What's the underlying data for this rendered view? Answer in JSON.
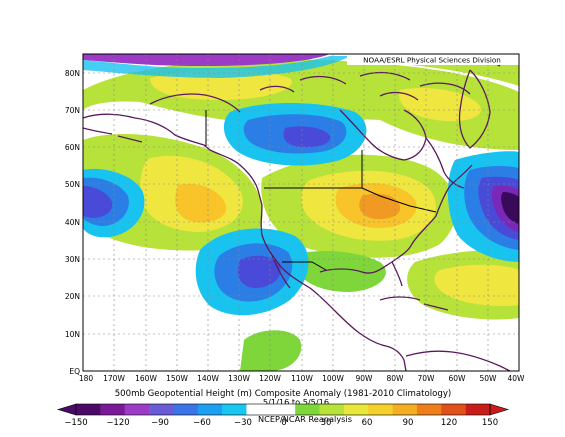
{
  "credit": "NOAA/ESRL Physical Sciences Division",
  "lat_labels": [
    "80N",
    "70N",
    "60N",
    "50N",
    "40N",
    "30N",
    "20N",
    "10N",
    "EQ"
  ],
  "lon_labels": [
    "180",
    "170W",
    "160W",
    "150W",
    "140W",
    "130W",
    "120W",
    "110W",
    "100W",
    "90W",
    "80W",
    "70W",
    "60W",
    "50W",
    "40W"
  ],
  "title_line1": "500mb Geopotential Height (m) Composite Anomaly (1981-2010 Climatology)",
  "title_line2": "5/1/16 to 5/5/16",
  "title_line3": "NCEP/NCAR Reanalysis",
  "colorbar": {
    "tick_labels": [
      "−150",
      "−120",
      "−90",
      "−60",
      "−30",
      "0",
      "30",
      "60",
      "90",
      "120",
      "150"
    ],
    "colors": [
      "#4a0a66",
      "#7a1a99",
      "#9c3cc6",
      "#6a5cd6",
      "#3a74e6",
      "#1c9ff0",
      "#18c6f0",
      "#ffffff",
      "#ffffff",
      "#7ed63a",
      "#b6e23a",
      "#e8e83a",
      "#f6d02a",
      "#f4ae22",
      "#ee7e1c",
      "#e0501a",
      "#c81c1a"
    ]
  },
  "colors": {
    "pos1": "#c8e830",
    "pos2": "#f0e640",
    "pos3": "#f8c42a",
    "pos4": "#f09a24",
    "neg1": "#19c3f0",
    "neg2": "#2a7ee6",
    "neg3": "#4a4ad8",
    "neg4": "#7a28b8",
    "neg5": "#3a0a5a",
    "land": "#5a1a5a",
    "grid": "#888888"
  }
}
